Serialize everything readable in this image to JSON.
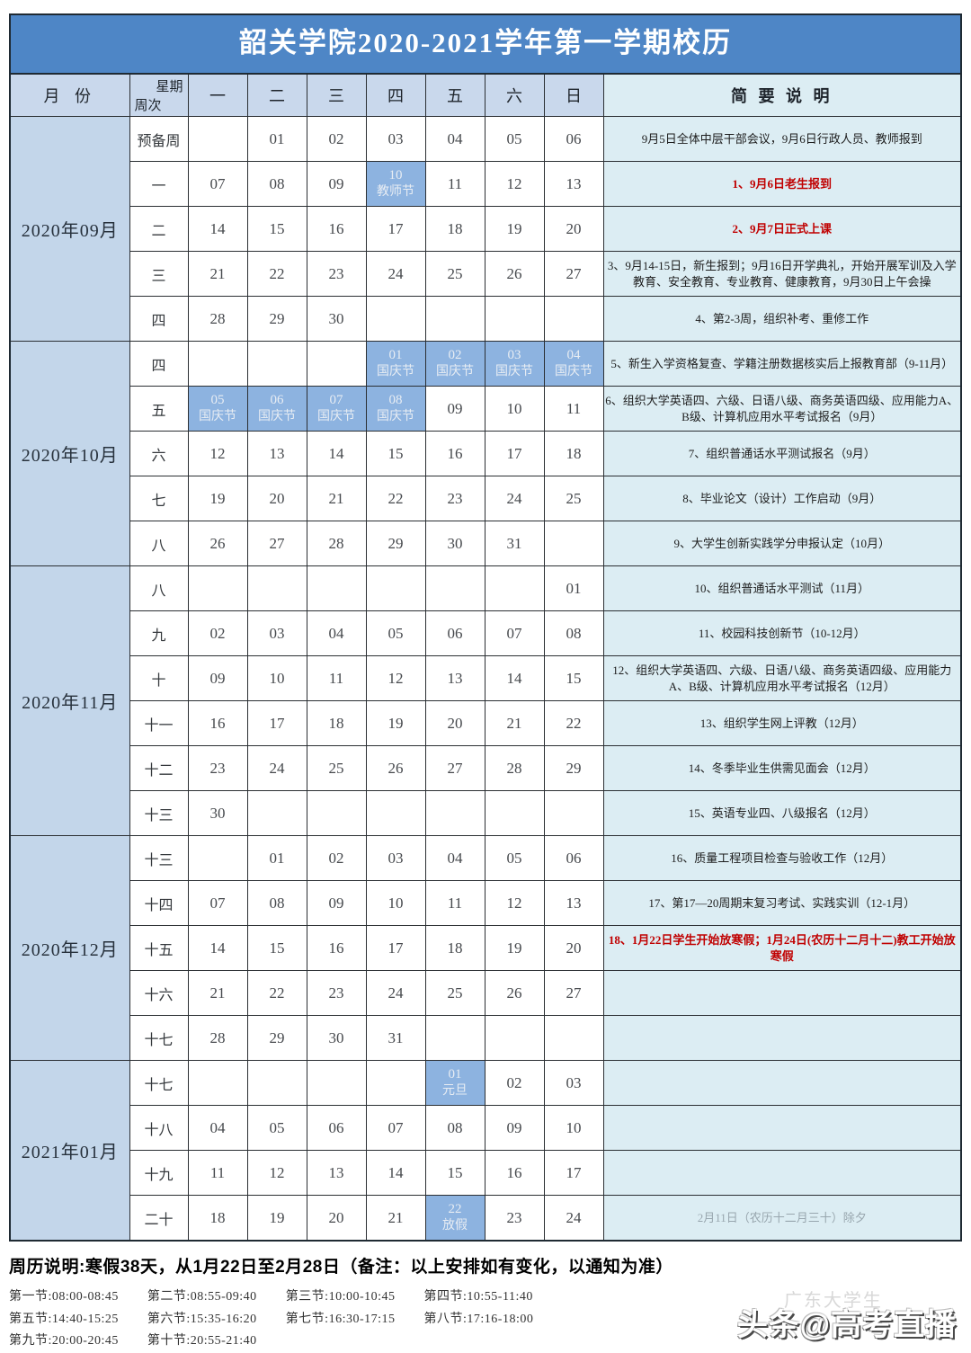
{
  "title": "韶关学院2020-2021学年第一学期校历",
  "colors": {
    "banner": "#4e86c6",
    "header_bg": "#c9d8ec",
    "month_bg": "#c3d6ea",
    "holiday_bg": "#8db3e0",
    "notes_bg": "#dcedf3",
    "red": "#c00000"
  },
  "header": {
    "month_label": "月 份",
    "week_top": "星期",
    "week_bottom": "周次",
    "days": [
      "一",
      "二",
      "三",
      "四",
      "五",
      "六",
      "日"
    ],
    "notes_label": "简 要 说 明"
  },
  "months": [
    {
      "label": "2020年09月",
      "rows": [
        {
          "week": "预备周",
          "days": [
            "",
            "01",
            "02",
            "03",
            "04",
            "05",
            "06"
          ],
          "note": "9月5日全体中层干部会议，9月6日行政人员、教师报到",
          "note_style": ""
        },
        {
          "week": "一",
          "days": [
            "07",
            "08",
            "09",
            {
              "n": "10",
              "t": "教师节"
            },
            "11",
            "12",
            "13"
          ],
          "note": "1、9月6日老生报到",
          "note_style": "red"
        },
        {
          "week": "二",
          "days": [
            "14",
            "15",
            "16",
            "17",
            "18",
            "19",
            "20"
          ],
          "note": "2、9月7日正式上课",
          "note_style": "red"
        },
        {
          "week": "三",
          "days": [
            "21",
            "22",
            "23",
            "24",
            "25",
            "26",
            "27"
          ],
          "note": "3、9月14-15日，新生报到；9月16日开学典礼，开始开展军训及入学教育、安全教育、专业教育、健康教育，9月30日上午会操",
          "note_style": ""
        },
        {
          "week": "四",
          "days": [
            "28",
            "29",
            "30",
            "",
            "",
            "",
            ""
          ],
          "note": "4、第2-3周，组织补考、重修工作",
          "note_style": ""
        }
      ]
    },
    {
      "label": "2020年10月",
      "rows": [
        {
          "week": "四",
          "days": [
            "",
            "",
            "",
            {
              "n": "01",
              "t": "国庆节"
            },
            {
              "n": "02",
              "t": "国庆节"
            },
            {
              "n": "03",
              "t": "国庆节"
            },
            {
              "n": "04",
              "t": "国庆节"
            }
          ],
          "note": "5、新生入学资格复查、学籍注册数据核实后上报教育部（9-11月）",
          "note_style": ""
        },
        {
          "week": "五",
          "days": [
            {
              "n": "05",
              "t": "国庆节"
            },
            {
              "n": "06",
              "t": "国庆节"
            },
            {
              "n": "07",
              "t": "国庆节"
            },
            {
              "n": "08",
              "t": "国庆节"
            },
            "09",
            "10",
            "11"
          ],
          "note": "6、组织大学英语四、六级、日语八级、商务英语四级、应用能力A、B级、计算机应用水平考试报名（9月）",
          "note_style": ""
        },
        {
          "week": "六",
          "days": [
            "12",
            "13",
            "14",
            "15",
            "16",
            "17",
            "18"
          ],
          "note": "7、组织普通话水平测试报名（9月）",
          "note_style": ""
        },
        {
          "week": "七",
          "days": [
            "19",
            "20",
            "21",
            "22",
            "23",
            "24",
            "25"
          ],
          "note": "8、毕业论文（设计）工作启动（9月）",
          "note_style": ""
        },
        {
          "week": "八",
          "days": [
            "26",
            "27",
            "28",
            "29",
            "30",
            "31",
            ""
          ],
          "note": "9、大学生创新实践学分申报认定（10月）",
          "note_style": ""
        }
      ]
    },
    {
      "label": "2020年11月",
      "rows": [
        {
          "week": "八",
          "days": [
            "",
            "",
            "",
            "",
            "",
            "",
            "01"
          ],
          "note": "10、组织普通话水平测试（11月）",
          "note_style": ""
        },
        {
          "week": "九",
          "days": [
            "02",
            "03",
            "04",
            "05",
            "06",
            "07",
            "08"
          ],
          "note": "11、校园科技创新节（10-12月）",
          "note_style": ""
        },
        {
          "week": "十",
          "days": [
            "09",
            "10",
            "11",
            "12",
            "13",
            "14",
            "15"
          ],
          "note": "12、组织大学英语四、六级、日语八级、商务英语四级、应用能力A、B级、计算机应用水平考试报名（12月）",
          "note_style": ""
        },
        {
          "week": "十一",
          "days": [
            "16",
            "17",
            "18",
            "19",
            "20",
            "21",
            "22"
          ],
          "note": "13、组织学生网上评教（12月）",
          "note_style": ""
        },
        {
          "week": "十二",
          "days": [
            "23",
            "24",
            "25",
            "26",
            "27",
            "28",
            "29"
          ],
          "note": "14、冬季毕业生供需见面会（12月）",
          "note_style": ""
        },
        {
          "week": "十三",
          "days": [
            "30",
            "",
            "",
            "",
            "",
            "",
            ""
          ],
          "note": "15、英语专业四、八级报名（12月）",
          "note_style": ""
        }
      ]
    },
    {
      "label": "2020年12月",
      "rows": [
        {
          "week": "十三",
          "days": [
            "",
            "01",
            "02",
            "03",
            "04",
            "05",
            "06"
          ],
          "note": "16、质量工程项目检查与验收工作（12月）",
          "note_style": ""
        },
        {
          "week": "十四",
          "days": [
            "07",
            "08",
            "09",
            "10",
            "11",
            "12",
            "13"
          ],
          "note": "17、第17—20周期末复习考试、实践实训（12-1月）",
          "note_style": ""
        },
        {
          "week": "十五",
          "days": [
            "14",
            "15",
            "16",
            "17",
            "18",
            "19",
            "20"
          ],
          "note": "18、1月22日学生开始放寒假；1月24日(农历十二月十二)教工开始放寒假",
          "note_style": "red"
        },
        {
          "week": "十六",
          "days": [
            "21",
            "22",
            "23",
            "24",
            "25",
            "26",
            "27"
          ],
          "note": "",
          "note_style": ""
        },
        {
          "week": "十七",
          "days": [
            "28",
            "29",
            "30",
            "31",
            "",
            "",
            ""
          ],
          "note": "",
          "note_style": ""
        }
      ]
    },
    {
      "label": "2021年01月",
      "rows": [
        {
          "week": "十七",
          "days": [
            "",
            "",
            "",
            "",
            {
              "n": "01",
              "t": "元旦"
            },
            "02",
            "03"
          ],
          "note": "",
          "note_style": ""
        },
        {
          "week": "十八",
          "days": [
            "04",
            "05",
            "06",
            "07",
            "08",
            "09",
            "10"
          ],
          "note": "",
          "note_style": ""
        },
        {
          "week": "十九",
          "days": [
            "11",
            "12",
            "13",
            "14",
            "15",
            "16",
            "17"
          ],
          "note": "",
          "note_style": ""
        },
        {
          "week": "二十",
          "days": [
            "18",
            "19",
            "20",
            "21",
            {
              "n": "22",
              "t": "放假"
            },
            "23",
            "24"
          ],
          "note": "2月11日（农历十二月三十）除夕",
          "note_style": "gray-center"
        }
      ]
    }
  ],
  "footer": {
    "week_note": "周历说明:寒假38天，从1月22日至2月28日（备注：以上安排如有变化，以通知为准）",
    "schedule": [
      [
        "第一节:08:00-08:45",
        "第二节:08:55-09:40",
        "第三节:10:00-10:45",
        "第四节:10:55-11:40"
      ],
      [
        "第五节:14:40-15:25",
        "第六节:15:35-16:20",
        "第七节:16:30-17:15",
        "第八节:17:16-18:00"
      ],
      [
        "第九节:20:00-20:45",
        "第十节:20:55-21:40"
      ]
    ]
  },
  "watermark": {
    "faint": "广东大学生",
    "main": "头条@高考直播"
  }
}
